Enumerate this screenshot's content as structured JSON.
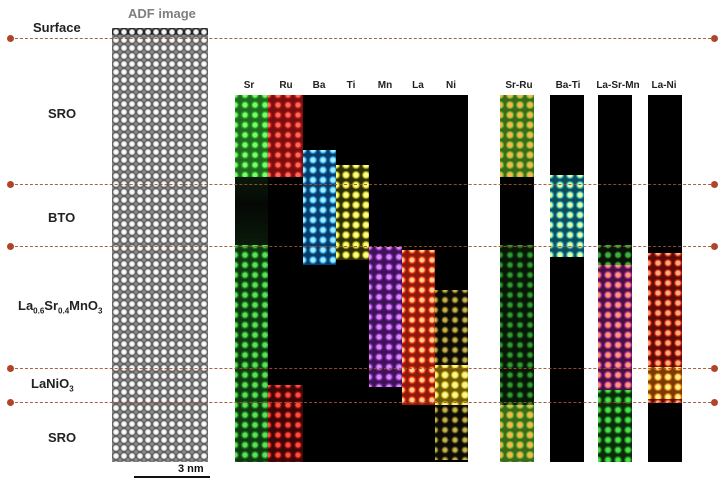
{
  "titles": {
    "adf": "ADF image"
  },
  "layers": {
    "surface": "Surface",
    "sro_top": "SRO",
    "bto": "BTO",
    "lsmo": {
      "base": "La",
      "sub1": "0.6",
      "mid": "Sr",
      "sub2": "0.4",
      "end": "MnO",
      "sub3": "3"
    },
    "lno": {
      "base": "LaNiO",
      "sub": "3"
    },
    "sro_bottom": "SRO"
  },
  "element_maps": [
    "Sr",
    "Ru",
    "Ba",
    "Ti",
    "Mn",
    "La",
    "Ni"
  ],
  "overlay_maps": [
    "Sr-Ru",
    "Ba-Ti",
    "La-Sr-Mn",
    "La-Ni"
  ],
  "scale_bar": {
    "label": "3 nm"
  },
  "colors": {
    "Sr": "#3ec83e",
    "Ru": "#e02525",
    "Ba": "#2fb4f0",
    "Ti": "#e6e62a",
    "Mn": "#a040d0",
    "La": "#ff3a1e",
    "Ni": "#e8d020",
    "guide": "#b0442a"
  }
}
